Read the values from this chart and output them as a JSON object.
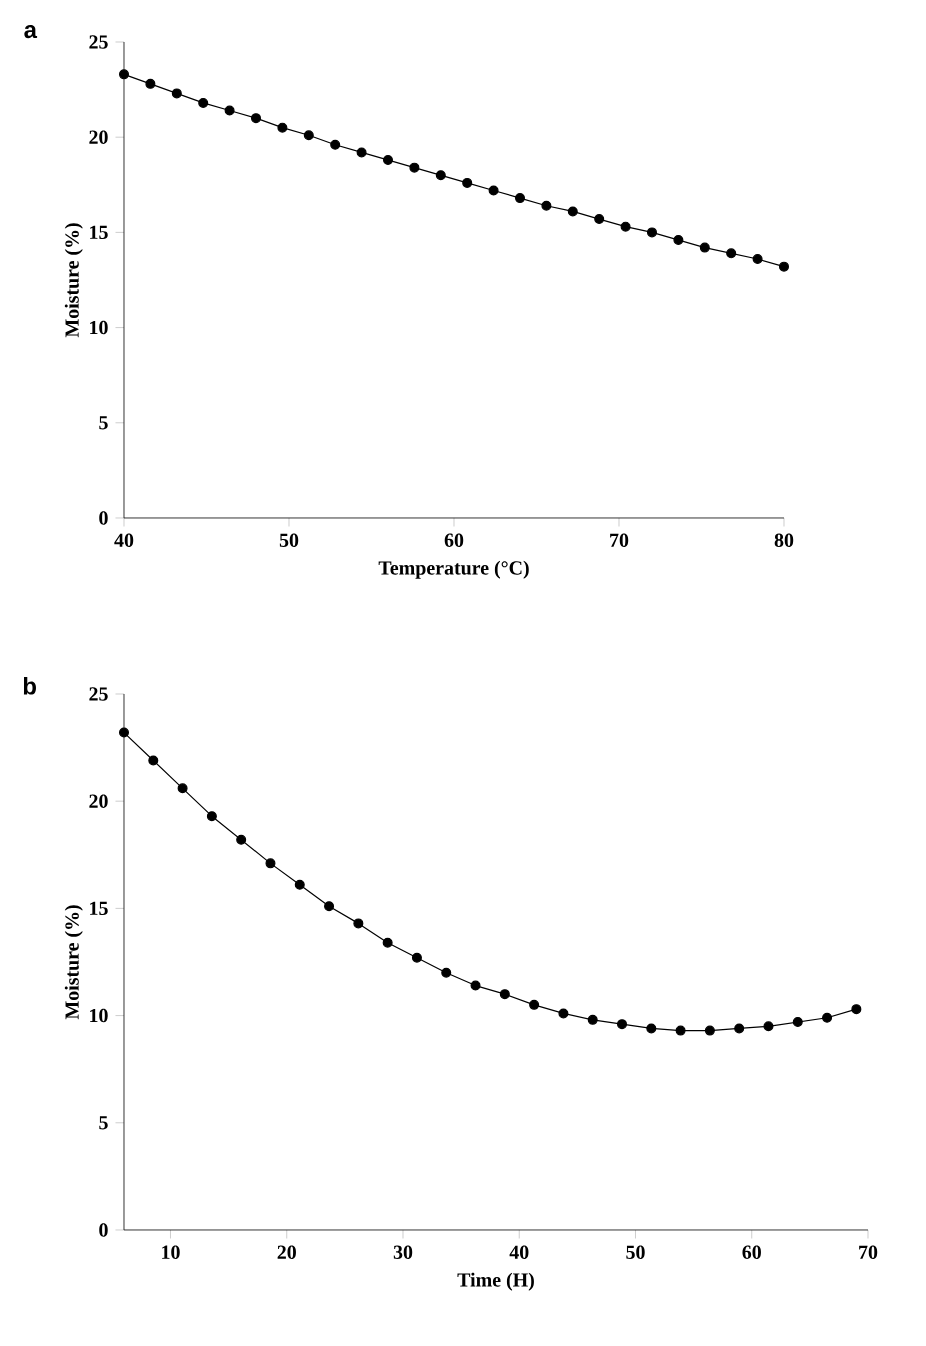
{
  "chart_data": [
    {
      "type": "line",
      "title": "a",
      "xlabel": "Temperature (°C)",
      "ylabel": "Moisture (%)",
      "xlim": [
        40,
        80
      ],
      "xticks": [
        40,
        50,
        60,
        70,
        80
      ],
      "ylim": [
        0,
        25
      ],
      "yticks": [
        0,
        5,
        10,
        15,
        20,
        25
      ],
      "marker": "circle",
      "line_style": "solid",
      "grid": false,
      "x": [
        40,
        41.6,
        43.2,
        44.8,
        46.4,
        48,
        49.6,
        51.2,
        52.8,
        54.4,
        56,
        57.6,
        59.2,
        60.8,
        62.4,
        64,
        65.6,
        67.2,
        68.8,
        70.4,
        72,
        73.6,
        75.2,
        76.8,
        78.4,
        80
      ],
      "series": [
        {
          "color": "#000000",
          "values": [
            23.3,
            22.8,
            22.3,
            21.8,
            21.4,
            21.0,
            20.5,
            20.1,
            19.6,
            19.2,
            18.8,
            18.4,
            18.0,
            17.6,
            17.2,
            16.8,
            16.4,
            16.1,
            15.7,
            15.3,
            15.0,
            14.6,
            14.2,
            13.9,
            13.6,
            13.2
          ]
        }
      ]
    },
    {
      "type": "line",
      "title": "b",
      "xlabel": "Time (H)",
      "ylabel": "Moisture (%)",
      "xlim": [
        6,
        70
      ],
      "xticks": [
        10,
        20,
        30,
        40,
        50,
        60,
        70
      ],
      "ylim": [
        0,
        25
      ],
      "yticks": [
        0,
        5,
        10,
        15,
        20,
        25
      ],
      "marker": "circle",
      "line_style": "solid",
      "grid": false,
      "x": [
        6,
        8.52,
        11.04,
        13.56,
        16.08,
        18.6,
        21.12,
        23.64,
        26.16,
        28.68,
        31.2,
        33.72,
        36.24,
        38.76,
        41.28,
        43.8,
        46.32,
        48.84,
        51.36,
        53.88,
        56.4,
        58.92,
        61.44,
        63.96,
        66.48,
        69
      ],
      "series": [
        {
          "color": "#000000",
          "values": [
            23.2,
            21.9,
            20.6,
            19.3,
            18.2,
            17.1,
            16.1,
            15.1,
            14.3,
            13.4,
            12.7,
            12.0,
            11.4,
            11.0,
            10.5,
            10.1,
            9.8,
            9.6,
            9.4,
            9.3,
            9.3,
            9.4,
            9.5,
            9.7,
            9.9,
            10.3
          ]
        }
      ]
    }
  ]
}
